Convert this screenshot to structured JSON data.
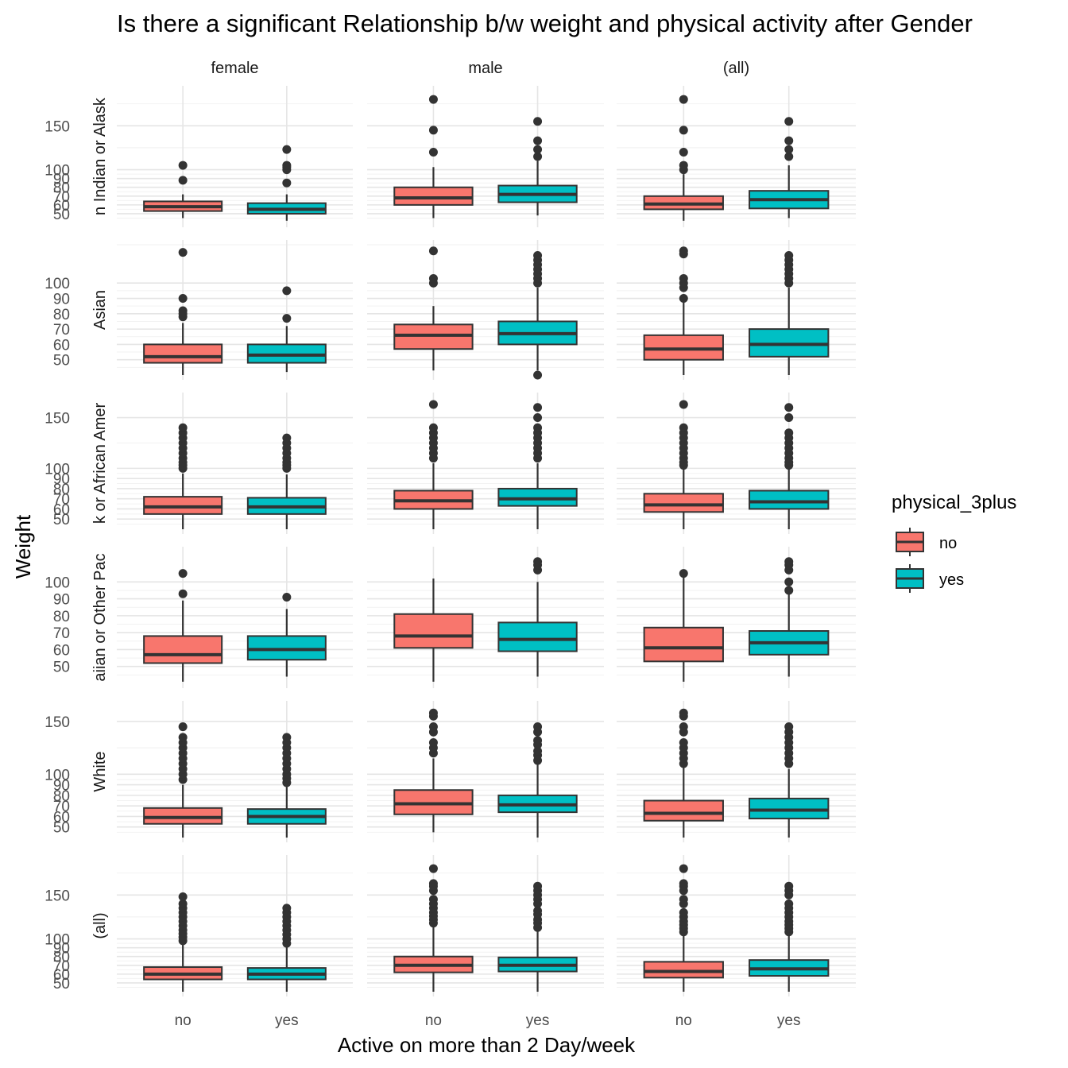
{
  "chart_data": {
    "type": "boxplot",
    "title": "Is there a significant Relationship b/w weight and physical activity after Gender",
    "xlabel": "Active on more than 2 Day/week",
    "ylabel": "Weight",
    "categories": [
      "no",
      "yes"
    ],
    "facet_columns": [
      "female",
      "male",
      "(all)"
    ],
    "facet_rows": [
      {
        "label": "n Indian or Alask",
        "ticks": [
          50,
          60,
          70,
          80,
          90,
          100,
          150
        ],
        "ylim": [
          40,
          190
        ]
      },
      {
        "label": "Asian",
        "ticks": [
          50,
          60,
          70,
          80,
          90,
          100
        ],
        "ylim": [
          40,
          125
        ]
      },
      {
        "label": "k or African Amer",
        "ticks": [
          50,
          60,
          70,
          80,
          90,
          100,
          150
        ],
        "ylim": [
          40,
          170
        ]
      },
      {
        "label": "aiian or Other Pac",
        "ticks": [
          50,
          60,
          70,
          80,
          90,
          100
        ],
        "ylim": [
          40,
          118
        ]
      },
      {
        "label": "White",
        "ticks": [
          50,
          60,
          70,
          80,
          90,
          100,
          150
        ],
        "ylim": [
          40,
          165
        ]
      },
      {
        "label": "(all)",
        "ticks": [
          50,
          60,
          70,
          80,
          90,
          100,
          150
        ],
        "ylim": [
          40,
          190
        ]
      }
    ],
    "legend": {
      "title": "physical_3plus",
      "position": "right",
      "entries": [
        {
          "label": "no",
          "color": "#F8766D"
        },
        {
          "label": "yes",
          "color": "#00BFC4"
        }
      ]
    },
    "panels": [
      [
        [
          {
            "q1": 53,
            "med": 58,
            "q3": 64,
            "lo": 45,
            "hi": 72,
            "out": [
              88,
              105
            ]
          },
          {
            "q1": 50,
            "med": 55,
            "q3": 62,
            "lo": 42,
            "hi": 72,
            "out": [
              85,
              100,
              103,
              105,
              123
            ]
          }
        ],
        [
          {
            "q1": 60,
            "med": 68,
            "q3": 80,
            "lo": 45,
            "hi": 103,
            "out": [
              120,
              145,
              180
            ]
          },
          {
            "q1": 63,
            "med": 72,
            "q3": 82,
            "lo": 48,
            "hi": 110,
            "out": [
              115,
              123,
              133,
              155
            ]
          }
        ],
        [
          {
            "q1": 55,
            "med": 61,
            "q3": 70,
            "lo": 42,
            "hi": 95,
            "out": [
              100,
              105,
              120,
              145,
              180
            ]
          },
          {
            "q1": 56,
            "med": 66,
            "q3": 76,
            "lo": 45,
            "hi": 105,
            "out": [
              115,
              123,
              133,
              155
            ]
          }
        ]
      ],
      [
        [
          {
            "q1": 48,
            "med": 52,
            "q3": 60,
            "lo": 40,
            "hi": 74,
            "out": [
              78,
              80,
              82,
              90,
              120
            ]
          },
          {
            "q1": 48,
            "med": 53,
            "q3": 60,
            "lo": 42,
            "hi": 72,
            "out": [
              77,
              95
            ]
          }
        ],
        [
          {
            "q1": 57,
            "med": 66,
            "q3": 73,
            "lo": 43,
            "hi": 85,
            "out": [
              100,
              103,
              121
            ]
          },
          {
            "q1": 60,
            "med": 67,
            "q3": 75,
            "lo": 43,
            "hi": 97,
            "out": [
              40,
              100,
              103,
              106,
              109,
              112,
              115,
              118
            ]
          }
        ],
        [
          {
            "q1": 50,
            "med": 57,
            "q3": 66,
            "lo": 40,
            "hi": 88,
            "out": [
              90,
              97,
              100,
              103,
              119,
              121
            ]
          },
          {
            "q1": 52,
            "med": 60,
            "q3": 70,
            "lo": 40,
            "hi": 97,
            "out": [
              100,
              103,
              106,
              109,
              112,
              115,
              118
            ]
          }
        ]
      ],
      [
        [
          {
            "q1": 55,
            "med": 62,
            "q3": 72,
            "lo": 40,
            "hi": 95,
            "out": [
              100,
              103,
              106,
              110,
              115,
              120,
              125,
              130,
              135,
              140
            ]
          },
          {
            "q1": 55,
            "med": 62,
            "q3": 71,
            "lo": 40,
            "hi": 94,
            "out": [
              100,
              103,
              106,
              110,
              115,
              120,
              125,
              130
            ]
          }
        ],
        [
          {
            "q1": 60,
            "med": 68,
            "q3": 78,
            "lo": 40,
            "hi": 105,
            "out": [
              110,
              115,
              120,
              125,
              130,
              135,
              140,
              163
            ]
          },
          {
            "q1": 63,
            "med": 70,
            "q3": 80,
            "lo": 40,
            "hi": 105,
            "out": [
              110,
              115,
              120,
              125,
              130,
              135,
              140,
              150,
              160
            ]
          }
        ],
        [
          {
            "q1": 57,
            "med": 64,
            "q3": 75,
            "lo": 40,
            "hi": 100,
            "out": [
              103,
              106,
              110,
              115,
              120,
              125,
              130,
              135,
              140,
              163
            ]
          },
          {
            "q1": 60,
            "med": 67,
            "q3": 78,
            "lo": 40,
            "hi": 100,
            "out": [
              103,
              106,
              110,
              115,
              120,
              125,
              130,
              135,
              150,
              160
            ]
          }
        ]
      ],
      [
        [
          {
            "q1": 52,
            "med": 57,
            "q3": 68,
            "lo": 41,
            "hi": 89,
            "out": [
              93,
              105
            ]
          },
          {
            "q1": 54,
            "med": 60,
            "q3": 68,
            "lo": 44,
            "hi": 84,
            "out": [
              91
            ]
          }
        ],
        [
          {
            "q1": 61,
            "med": 68,
            "q3": 81,
            "lo": 41,
            "hi": 102,
            "out": []
          },
          {
            "q1": 59,
            "med": 66,
            "q3": 76,
            "lo": 44,
            "hi": 100,
            "out": [
              107,
              110,
              112
            ]
          }
        ],
        [
          {
            "q1": 53,
            "med": 61,
            "q3": 73,
            "lo": 41,
            "hi": 105,
            "out": [
              105
            ]
          },
          {
            "q1": 57,
            "med": 64,
            "q3": 71,
            "lo": 44,
            "hi": 93,
            "out": [
              95,
              100,
              107,
              110,
              112
            ]
          }
        ]
      ],
      [
        [
          {
            "q1": 53,
            "med": 59,
            "q3": 68,
            "lo": 40,
            "hi": 90,
            "out": [
              95,
              100,
              105,
              110,
              115,
              120,
              125,
              130,
              135,
              145
            ]
          },
          {
            "q1": 53,
            "med": 60,
            "q3": 67,
            "lo": 40,
            "hi": 88,
            "out": [
              92,
              96,
              100,
              105,
              110,
              115,
              120,
              125,
              130,
              135
            ]
          }
        ],
        [
          {
            "q1": 62,
            "med": 72,
            "q3": 85,
            "lo": 45,
            "hi": 115,
            "out": [
              120,
              125,
              130,
              140,
              145,
              155,
              158
            ]
          },
          {
            "q1": 64,
            "med": 71,
            "q3": 80,
            "lo": 40,
            "hi": 110,
            "out": [
              113,
              118,
              122,
              128,
              132,
              140,
              145
            ]
          }
        ],
        [
          {
            "q1": 56,
            "med": 63,
            "q3": 75,
            "lo": 40,
            "hi": 108,
            "out": [
              110,
              115,
              120,
              125,
              130,
              140,
              145,
              155,
              158
            ]
          },
          {
            "q1": 58,
            "med": 66,
            "q3": 77,
            "lo": 40,
            "hi": 105,
            "out": [
              110,
              115,
              120,
              125,
              130,
              135,
              140,
              145
            ]
          }
        ]
      ],
      [
        [
          {
            "q1": 54,
            "med": 60,
            "q3": 68,
            "lo": 40,
            "hi": 95,
            "out": [
              98,
              102,
              106,
              110,
              115,
              120,
              125,
              130,
              135,
              140,
              148
            ]
          },
          {
            "q1": 54,
            "med": 60,
            "q3": 67,
            "lo": 40,
            "hi": 92,
            "out": [
              95,
              100,
              105,
              110,
              115,
              120,
              125,
              130,
              135
            ]
          }
        ],
        [
          {
            "q1": 62,
            "med": 70,
            "q3": 80,
            "lo": 40,
            "hi": 115,
            "out": [
              118,
              122,
              126,
              130,
              135,
              140,
              145,
              155,
              160,
              163,
              180
            ]
          },
          {
            "q1": 63,
            "med": 70,
            "q3": 79,
            "lo": 40,
            "hi": 110,
            "out": [
              113,
              118,
              122,
              128,
              132,
              140,
              145,
              150,
              155,
              160
            ]
          }
        ],
        [
          {
            "q1": 56,
            "med": 63,
            "q3": 74,
            "lo": 40,
            "hi": 105,
            "out": [
              108,
              112,
              116,
              120,
              125,
              130,
              140,
              145,
              155,
              160,
              163,
              180
            ]
          },
          {
            "q1": 58,
            "med": 66,
            "q3": 76,
            "lo": 40,
            "hi": 105,
            "out": [
              108,
              112,
              116,
              120,
              125,
              130,
              135,
              140,
              150,
              155,
              160
            ]
          }
        ]
      ]
    ]
  }
}
